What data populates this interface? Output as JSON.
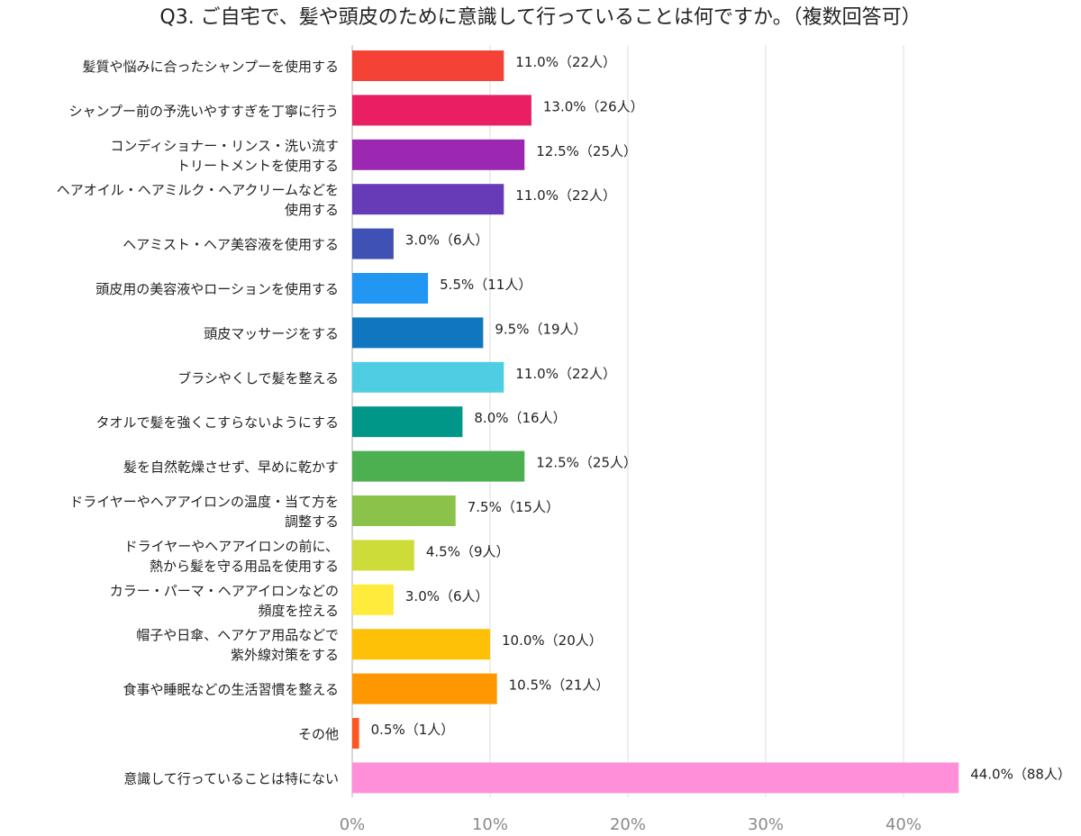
{
  "chart_data": {
    "type": "bar",
    "orientation": "horizontal",
    "title": "Q3. ご自宅で、髪や頭皮のために意識して行っていることは何ですか。（複数回答可）",
    "categories": [
      [
        "髪質や悩みに合ったシャンプーを使用する"
      ],
      [
        "シャンプー前の予洗いやすすぎを丁寧に行う"
      ],
      [
        "コンディショナー・リンス・洗い流す",
        "トリートメントを使用する"
      ],
      [
        "ヘアオイル・ヘアミルク・ヘアクリームなどを",
        "使用する"
      ],
      [
        "ヘアミスト・ヘア美容液を使用する"
      ],
      [
        "頭皮用の美容液やローションを使用する"
      ],
      [
        "頭皮マッサージをする"
      ],
      [
        "ブラシやくしで髪を整える"
      ],
      [
        "タオルで髪を強くこすらないようにする"
      ],
      [
        "髪を自然乾燥させず、早めに乾かす"
      ],
      [
        "ドライヤーやヘアアイロンの温度・当て方を",
        "調整する"
      ],
      [
        "ドライヤーやヘアアイロンの前に、",
        "熱から髪を守る用品を使用する"
      ],
      [
        "カラー・パーマ・ヘアアイロンなどの",
        "頻度を控える"
      ],
      [
        "帽子や日傘、ヘアケア用品などで",
        "紫外線対策をする"
      ],
      [
        "食事や睡眠などの生活習慣を整える"
      ],
      [
        "その他"
      ],
      [
        "意識して行っていることは特にない"
      ]
    ],
    "values": [
      11.0,
      13.0,
      12.5,
      11.0,
      3.0,
      5.5,
      9.5,
      11.0,
      8.0,
      12.5,
      7.5,
      4.5,
      3.0,
      10.0,
      10.5,
      0.5,
      44.0
    ],
    "value_labels": [
      "11.0%（22人）",
      "13.0%（26人）",
      "12.5%（25人）",
      "11.0%（22人）",
      "3.0%（6人）",
      "5.5%（11人）",
      "9.5%（19人）",
      "11.0%（22人）",
      "8.0%（16人）",
      "12.5%（25人）",
      "7.5%（15人）",
      "4.5%（9人）",
      "3.0%（6人）",
      "10.0%（20人）",
      "10.5%（21人）",
      "0.5%（1人）",
      "44.0%（88人）"
    ],
    "colors": [
      "#f44336",
      "#e91e63",
      "#9c27b0",
      "#673ab7",
      "#3f51b5",
      "#2196f3",
      "#0f76bf",
      "#4fcde2",
      "#009688",
      "#4caf50",
      "#8bc34a",
      "#cddc39",
      "#ffeb3b",
      "#ffc107",
      "#ff9800",
      "#ff5722",
      "#ff8fd9"
    ],
    "x_ticks": [
      "0%",
      "10%",
      "20%",
      "30%",
      "40%"
    ],
    "xlim": [
      0,
      47
    ],
    "grid": true,
    "legend": "none"
  }
}
